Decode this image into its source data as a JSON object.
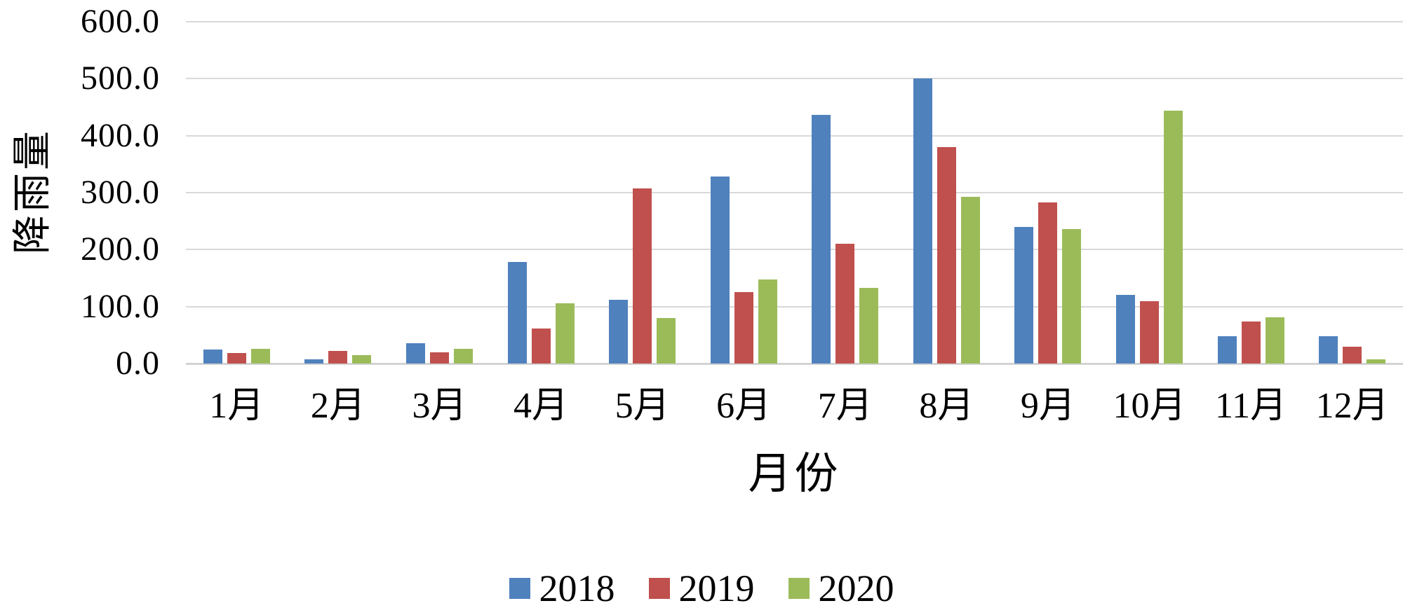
{
  "chart_data": {
    "type": "bar",
    "title": "",
    "ylabel": "降雨量",
    "xlabel": "月份",
    "categories": [
      "1月",
      "2月",
      "3月",
      "4月",
      "5月",
      "6月",
      "7月",
      "8月",
      "9月",
      "10月",
      "11月",
      "12月"
    ],
    "series": [
      {
        "name": "2018",
        "color": "#4F81BD",
        "values": [
          25,
          8,
          36,
          178,
          112,
          328,
          437,
          500,
          240,
          121,
          48,
          48
        ]
      },
      {
        "name": "2019",
        "color": "#C0504D",
        "values": [
          18,
          22,
          20,
          62,
          308,
          126,
          210,
          380,
          283,
          109,
          74,
          30
        ]
      },
      {
        "name": "2020",
        "color": "#9BBB59",
        "values": [
          26,
          15,
          26,
          106,
          80,
          148,
          133,
          293,
          236,
          444,
          81,
          8
        ]
      }
    ],
    "ylim": [
      0,
      600
    ],
    "ytick_labels": [
      "600.0",
      "500.0",
      "400.0",
      "300.0",
      "200.0",
      "100.0",
      "0.0"
    ],
    "grid": true,
    "legend_position": "bottom",
    "gridline_color": "#D9D9D9",
    "background_color": "#FFFFFF",
    "text_color": "#000000"
  }
}
